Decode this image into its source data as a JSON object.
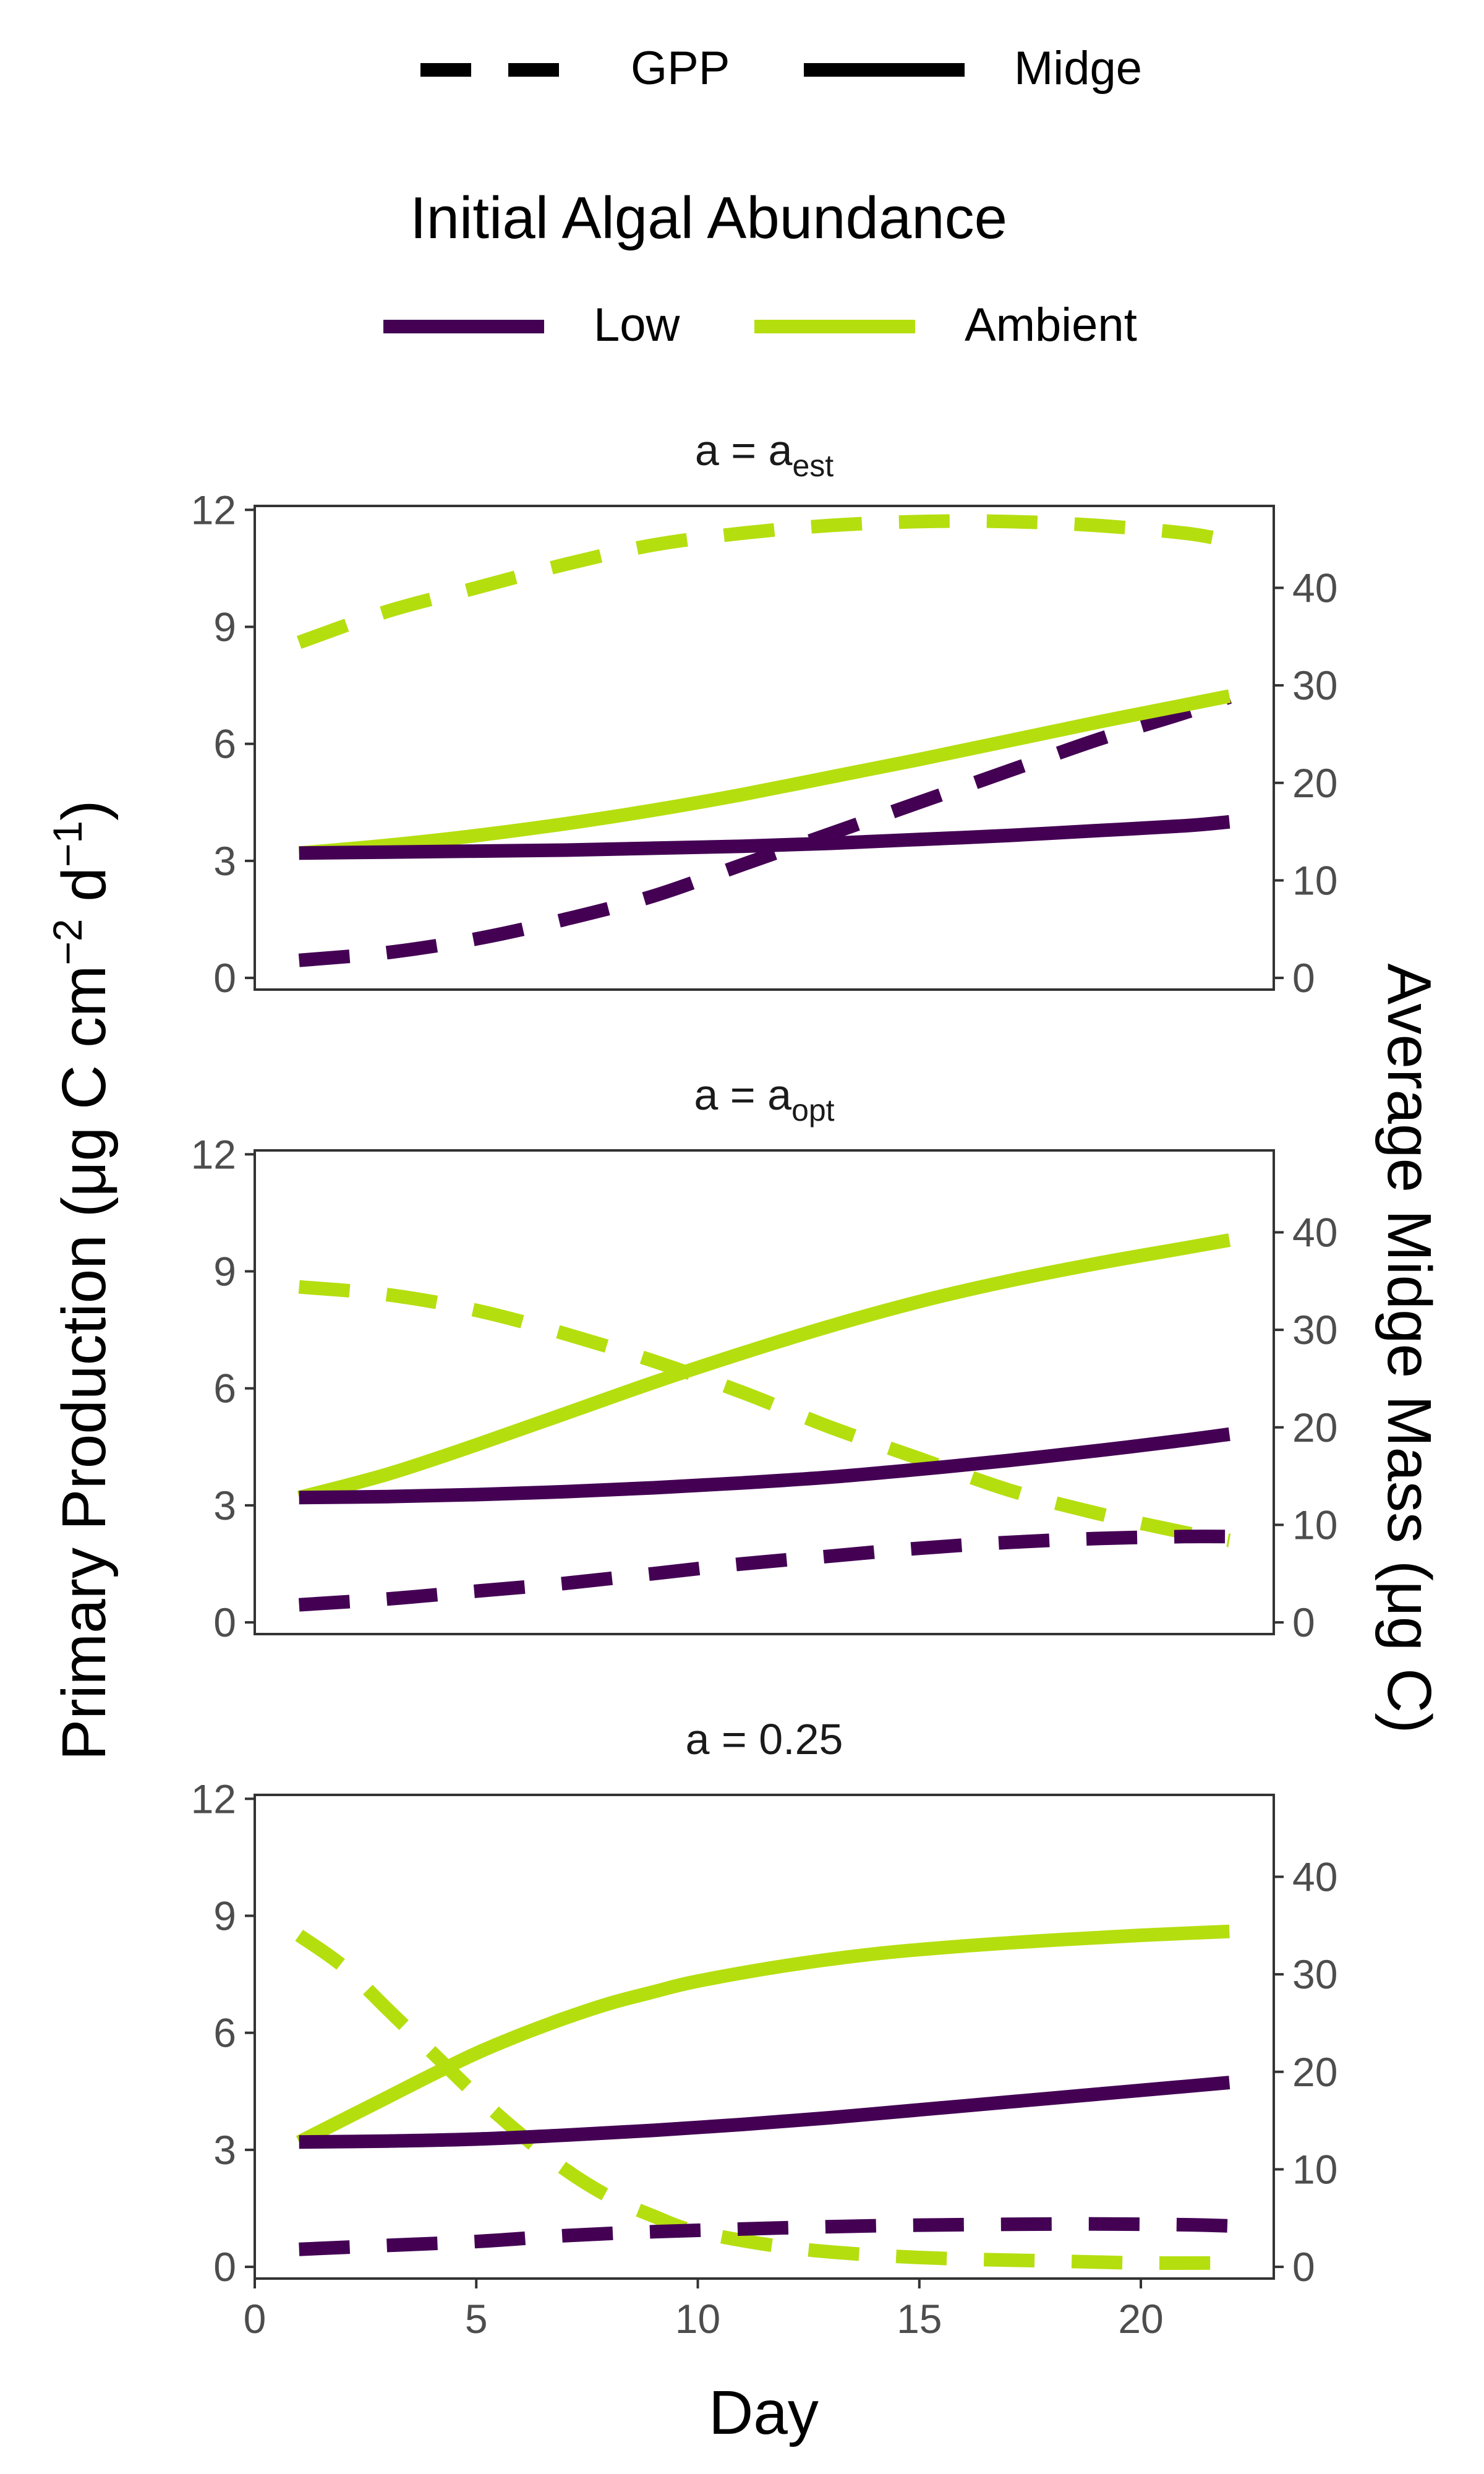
{
  "legend": {
    "linetype_items": [
      {
        "label": "GPP",
        "dash": true
      },
      {
        "label": "Midge",
        "dash": false
      }
    ],
    "color_title": "Initial Algal Abundance",
    "color_items": [
      {
        "label": "Low",
        "color": "#440154"
      },
      {
        "label": "Ambient",
        "color": "#B5DE0F"
      }
    ]
  },
  "axes": {
    "xlabel": "Day",
    "ylabel_left_text": "Primary Production (μg C  cm",
    "ylabel_left_sup1": "−2",
    "ylabel_left_mid": " d",
    "ylabel_left_sup2": "−1",
    "ylabel_left_close": ")",
    "ylabel_right": "Average Midge Mass (μg C)"
  },
  "chart_data": [
    {
      "type": "line",
      "title_main": "a = a",
      "title_sub": "est",
      "xlim": [
        0,
        23
      ],
      "ylim_left": [
        -0.3,
        12.1
      ],
      "ylim_right": [
        -1.2,
        48.4
      ],
      "x_ticks": [
        0,
        5,
        10,
        15,
        20
      ],
      "y_left_ticks": [
        0,
        3,
        6,
        9,
        12
      ],
      "y_right_ticks": [
        0,
        10,
        20,
        30,
        40
      ],
      "series": [
        {
          "variable": "GPP",
          "abundance": "Ambient",
          "axis": "left",
          "x": [
            1,
            3,
            5,
            7,
            9,
            11,
            13,
            15,
            17,
            19,
            21,
            22
          ],
          "y": [
            8.6,
            9.4,
            10.0,
            10.6,
            11.1,
            11.4,
            11.6,
            11.7,
            11.7,
            11.6,
            11.4,
            11.2
          ]
        },
        {
          "variable": "GPP",
          "abundance": "Low",
          "axis": "left",
          "x": [
            1,
            3,
            5,
            7,
            9,
            11,
            13,
            15,
            17,
            19,
            21,
            22
          ],
          "y": [
            0.45,
            0.65,
            1.0,
            1.5,
            2.1,
            2.9,
            3.7,
            4.5,
            5.3,
            6.1,
            6.8,
            7.2
          ]
        },
        {
          "variable": "Midge",
          "abundance": "Ambient",
          "axis": "right",
          "x": [
            1,
            3,
            5,
            7,
            9,
            11,
            13,
            15,
            17,
            19,
            21,
            22
          ],
          "y": [
            12.8,
            13.6,
            14.6,
            15.8,
            17.2,
            18.8,
            20.6,
            22.4,
            24.3,
            26.2,
            28.0,
            28.9
          ]
        },
        {
          "variable": "Midge",
          "abundance": "Low",
          "axis": "right",
          "x": [
            1,
            3,
            5,
            7,
            9,
            11,
            13,
            15,
            17,
            19,
            21,
            22
          ],
          "y": [
            12.8,
            12.9,
            13.0,
            13.1,
            13.3,
            13.5,
            13.8,
            14.2,
            14.6,
            15.1,
            15.6,
            16.0
          ]
        }
      ]
    },
    {
      "type": "line",
      "title_main": "a = a",
      "title_sub": "opt",
      "xlim": [
        0,
        23
      ],
      "ylim_left": [
        -0.3,
        12.1
      ],
      "ylim_right": [
        -1.2,
        48.4
      ],
      "x_ticks": [
        0,
        5,
        10,
        15,
        20
      ],
      "y_left_ticks": [
        0,
        3,
        6,
        9,
        12
      ],
      "y_right_ticks": [
        0,
        10,
        20,
        30,
        40
      ],
      "series": [
        {
          "variable": "GPP",
          "abundance": "Ambient",
          "axis": "left",
          "x": [
            1,
            3,
            5,
            7,
            9,
            11,
            13,
            15,
            17,
            19,
            21,
            22
          ],
          "y": [
            8.6,
            8.4,
            8.0,
            7.4,
            6.7,
            5.9,
            5.0,
            4.2,
            3.4,
            2.8,
            2.3,
            2.1
          ]
        },
        {
          "variable": "GPP",
          "abundance": "Low",
          "axis": "left",
          "x": [
            1,
            3,
            5,
            7,
            9,
            11,
            13,
            15,
            17,
            19,
            21,
            22
          ],
          "y": [
            0.45,
            0.6,
            0.8,
            1.0,
            1.25,
            1.5,
            1.7,
            1.9,
            2.05,
            2.15,
            2.2,
            2.2
          ]
        },
        {
          "variable": "Midge",
          "abundance": "Ambient",
          "axis": "right",
          "x": [
            1,
            3,
            5,
            7,
            9,
            11,
            13,
            15,
            17,
            19,
            21,
            22
          ],
          "y": [
            12.8,
            15.2,
            18.2,
            21.4,
            24.6,
            27.6,
            30.4,
            32.9,
            35.0,
            36.8,
            38.4,
            39.2
          ]
        },
        {
          "variable": "Midge",
          "abundance": "Low",
          "axis": "right",
          "x": [
            1,
            3,
            5,
            7,
            9,
            11,
            13,
            15,
            17,
            19,
            21,
            22
          ],
          "y": [
            12.8,
            12.9,
            13.1,
            13.4,
            13.8,
            14.3,
            14.9,
            15.7,
            16.6,
            17.6,
            18.7,
            19.3
          ]
        }
      ]
    },
    {
      "type": "line",
      "title_main": "a = 0.25",
      "title_sub": "",
      "xlim": [
        0,
        23
      ],
      "ylim_left": [
        -0.3,
        12.1
      ],
      "ylim_right": [
        -1.2,
        48.4
      ],
      "x_ticks": [
        0,
        5,
        10,
        15,
        20
      ],
      "y_left_ticks": [
        0,
        3,
        6,
        9,
        12
      ],
      "y_right_ticks": [
        0,
        10,
        20,
        30,
        40
      ],
      "series": [
        {
          "variable": "GPP",
          "abundance": "Ambient",
          "axis": "left",
          "x": [
            1,
            2,
            3,
            4,
            5,
            6,
            7,
            8,
            9,
            10,
            12,
            14,
            16,
            18,
            20,
            22
          ],
          "y": [
            8.5,
            7.7,
            6.6,
            5.5,
            4.4,
            3.4,
            2.5,
            1.8,
            1.3,
            0.9,
            0.5,
            0.3,
            0.2,
            0.15,
            0.1,
            0.1
          ]
        },
        {
          "variable": "GPP",
          "abundance": "Low",
          "axis": "left",
          "x": [
            1,
            3,
            5,
            7,
            9,
            11,
            13,
            15,
            17,
            19,
            21,
            22
          ],
          "y": [
            0.45,
            0.55,
            0.65,
            0.8,
            0.9,
            0.97,
            1.03,
            1.07,
            1.09,
            1.1,
            1.08,
            1.05
          ]
        },
        {
          "variable": "Midge",
          "abundance": "Ambient",
          "axis": "right",
          "x": [
            1,
            2,
            3,
            4,
            5,
            6,
            7,
            8,
            9,
            10,
            12,
            14,
            16,
            18,
            20,
            22
          ],
          "y": [
            12.8,
            15.1,
            17.4,
            19.7,
            21.9,
            23.8,
            25.5,
            27.0,
            28.2,
            29.3,
            30.9,
            32.1,
            32.9,
            33.5,
            34.0,
            34.4
          ]
        },
        {
          "variable": "Midge",
          "abundance": "Low",
          "axis": "right",
          "x": [
            1,
            3,
            5,
            7,
            9,
            11,
            13,
            15,
            17,
            19,
            21,
            22
          ],
          "y": [
            12.8,
            12.9,
            13.1,
            13.5,
            14.0,
            14.6,
            15.3,
            16.1,
            16.9,
            17.7,
            18.5,
            18.9
          ]
        }
      ]
    }
  ]
}
